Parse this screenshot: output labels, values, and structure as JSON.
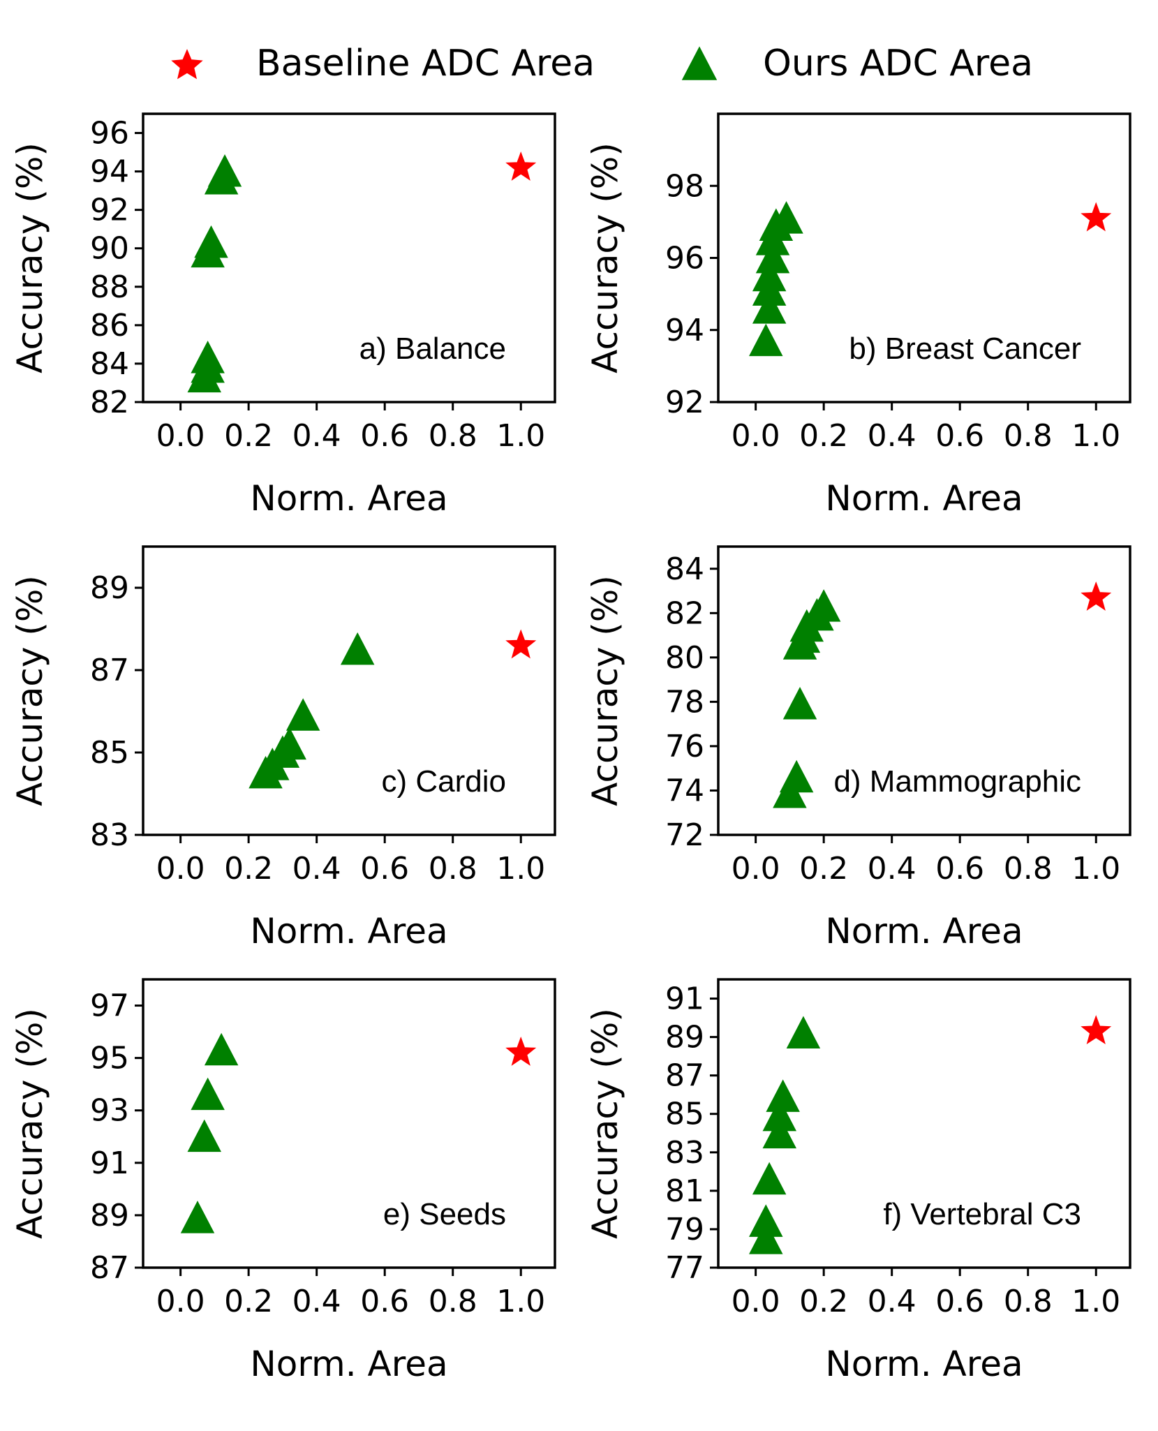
{
  "legend": {
    "baseline_label": "Baseline ADC Area",
    "ours_label": "Ours ADC Area",
    "baseline_color": "#ff0000",
    "ours_color": "#008000",
    "baseline_marker": "star",
    "ours_marker": "triangle"
  },
  "chart_data": [
    {
      "type": "scatter",
      "title": "a) Balance",
      "xlabel": "Norm. Area",
      "ylabel": "Accuracy (%)",
      "xlim": [
        -0.11,
        1.1
      ],
      "ylim": [
        82,
        97
      ],
      "xticks": [
        "0.0",
        "0.2",
        "0.4",
        "0.6",
        "0.8",
        "1.0"
      ],
      "yticks": [
        "82",
        "84",
        "86",
        "88",
        "90",
        "92",
        "94",
        "96"
      ],
      "series": [
        {
          "name": "Baseline ADC Area",
          "points": [
            [
              1.0,
              94.2
            ]
          ]
        },
        {
          "name": "Ours ADC Area",
          "points": [
            [
              0.13,
              94.0
            ],
            [
              0.12,
              93.6
            ],
            [
              0.09,
              90.3
            ],
            [
              0.08,
              89.8
            ],
            [
              0.08,
              84.3
            ],
            [
              0.08,
              83.8
            ],
            [
              0.07,
              83.3
            ]
          ]
        }
      ]
    },
    {
      "type": "scatter",
      "title": "b) Breast Cancer",
      "xlabel": "Norm. Area",
      "ylabel": "Accuracy (%)",
      "xlim": [
        -0.11,
        1.1
      ],
      "ylim": [
        92,
        100
      ],
      "xticks": [
        "0.0",
        "0.2",
        "0.4",
        "0.6",
        "0.8",
        "1.0"
      ],
      "yticks": [
        "92",
        "94",
        "96",
        "98"
      ],
      "series": [
        {
          "name": "Baseline ADC Area",
          "points": [
            [
              1.0,
              97.1
            ]
          ]
        },
        {
          "name": "Ours ADC Area",
          "points": [
            [
              0.09,
              97.1
            ],
            [
              0.06,
              96.9
            ],
            [
              0.05,
              96.5
            ],
            [
              0.05,
              96.0
            ],
            [
              0.04,
              95.5
            ],
            [
              0.04,
              95.1
            ],
            [
              0.04,
              94.6
            ],
            [
              0.03,
              93.7
            ]
          ]
        }
      ]
    },
    {
      "type": "scatter",
      "title": "c) Cardio",
      "xlabel": "Norm. Area",
      "ylabel": "Accuracy (%)",
      "xlim": [
        -0.11,
        1.1
      ],
      "ylim": [
        83,
        90
      ],
      "xticks": [
        "0.0",
        "0.2",
        "0.4",
        "0.6",
        "0.8",
        "1.0"
      ],
      "yticks": [
        "83",
        "85",
        "87",
        "89"
      ],
      "series": [
        {
          "name": "Baseline ADC Area",
          "points": [
            [
              1.0,
              87.6
            ]
          ]
        },
        {
          "name": "Ours ADC Area",
          "points": [
            [
              0.52,
              87.5
            ],
            [
              0.36,
              85.9
            ],
            [
              0.32,
              85.2
            ],
            [
              0.3,
              85.0
            ],
            [
              0.27,
              84.7
            ],
            [
              0.25,
              84.5
            ]
          ]
        }
      ]
    },
    {
      "type": "scatter",
      "title": "d) Mammographic",
      "xlabel": "Norm. Area",
      "ylabel": "Accuracy (%)",
      "xlim": [
        -0.11,
        1.1
      ],
      "ylim": [
        72,
        85
      ],
      "xticks": [
        "0.0",
        "0.2",
        "0.4",
        "0.6",
        "0.8",
        "1.0"
      ],
      "yticks": [
        "72",
        "74",
        "76",
        "78",
        "80",
        "82",
        "84"
      ],
      "series": [
        {
          "name": "Baseline ADC Area",
          "points": [
            [
              1.0,
              82.7
            ]
          ]
        },
        {
          "name": "Ours ADC Area",
          "points": [
            [
              0.2,
              82.3
            ],
            [
              0.18,
              81.9
            ],
            [
              0.15,
              81.4
            ],
            [
              0.14,
              80.9
            ],
            [
              0.13,
              80.6
            ],
            [
              0.13,
              77.9
            ],
            [
              0.12,
              74.6
            ],
            [
              0.1,
              73.9
            ]
          ]
        }
      ]
    },
    {
      "type": "scatter",
      "title": "e) Seeds",
      "xlabel": "Norm. Area",
      "ylabel": "Accuracy (%)",
      "xlim": [
        -0.11,
        1.1
      ],
      "ylim": [
        87,
        98
      ],
      "xticks": [
        "0.0",
        "0.2",
        "0.4",
        "0.6",
        "0.8",
        "1.0"
      ],
      "yticks": [
        "87",
        "89",
        "91",
        "93",
        "95",
        "97"
      ],
      "series": [
        {
          "name": "Baseline ADC Area",
          "points": [
            [
              1.0,
              95.2
            ]
          ]
        },
        {
          "name": "Ours ADC Area",
          "points": [
            [
              0.12,
              95.3
            ],
            [
              0.08,
              93.6
            ],
            [
              0.07,
              92.0
            ],
            [
              0.05,
              88.9
            ]
          ]
        }
      ]
    },
    {
      "type": "scatter",
      "title": "f) Vertebral C3",
      "xlabel": "Norm. Area",
      "ylabel": "Accuracy (%)",
      "xlim": [
        -0.11,
        1.1
      ],
      "ylim": [
        77,
        92
      ],
      "xticks": [
        "0.0",
        "0.2",
        "0.4",
        "0.6",
        "0.8",
        "1.0"
      ],
      "yticks": [
        "77",
        "79",
        "81",
        "83",
        "85",
        "87",
        "89",
        "91"
      ],
      "series": [
        {
          "name": "Baseline ADC Area",
          "points": [
            [
              1.0,
              89.3
            ]
          ]
        },
        {
          "name": "Ours ADC Area",
          "points": [
            [
              0.14,
              89.2
            ],
            [
              0.08,
              85.9
            ],
            [
              0.07,
              84.9
            ],
            [
              0.07,
              84.0
            ],
            [
              0.04,
              81.6
            ],
            [
              0.03,
              79.4
            ],
            [
              0.03,
              78.5
            ]
          ]
        }
      ]
    }
  ]
}
